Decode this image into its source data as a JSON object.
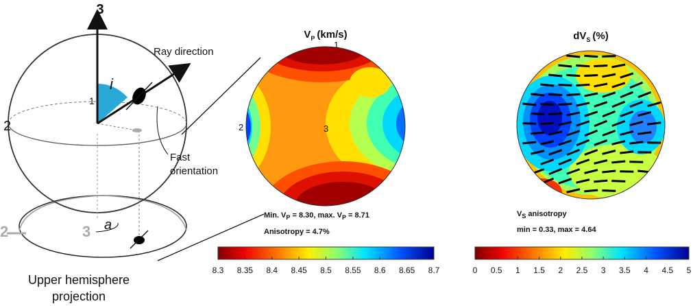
{
  "diagram": {
    "axis_3": "3",
    "axis_2": "2",
    "angle_i": "i",
    "axis_1": "1",
    "ray_direction": "Ray direction",
    "fast_orientation": [
      "Fast",
      "orientation"
    ],
    "projection_axis_2": "2",
    "projection_axis_3": "3",
    "angle_a": "a",
    "caption": [
      "Upper hemisphere",
      "projection"
    ]
  },
  "vp_plot": {
    "title": {
      "symbol": "V",
      "subscript": "P",
      "unit": "(km/s)"
    },
    "axis_labels": [
      "1",
      "2",
      "3"
    ],
    "min_max": [
      "Min. V",
      "P",
      " = 8.30, max. V",
      "P",
      " = 8.71"
    ],
    "anisotropy": "Anisotropy =  4.7%",
    "colorbar_ticks": [
      "8.3",
      "8.35",
      "8.4",
      "8.45",
      "8.5",
      "8.55",
      "8.6",
      "8.65",
      "8.7"
    ]
  },
  "vs_plot": {
    "title": {
      "symbol": "dV",
      "subscript": "S",
      "unit": "(%)"
    },
    "caption": [
      "V",
      "S",
      " anisotropy"
    ],
    "min_max": "min =  0.33, max =  4.64",
    "colorbar_ticks": [
      "0",
      "0.5",
      "1",
      "1.5",
      "2",
      "2.5",
      "3",
      "3.5",
      "4",
      "4.5",
      "5"
    ]
  }
}
